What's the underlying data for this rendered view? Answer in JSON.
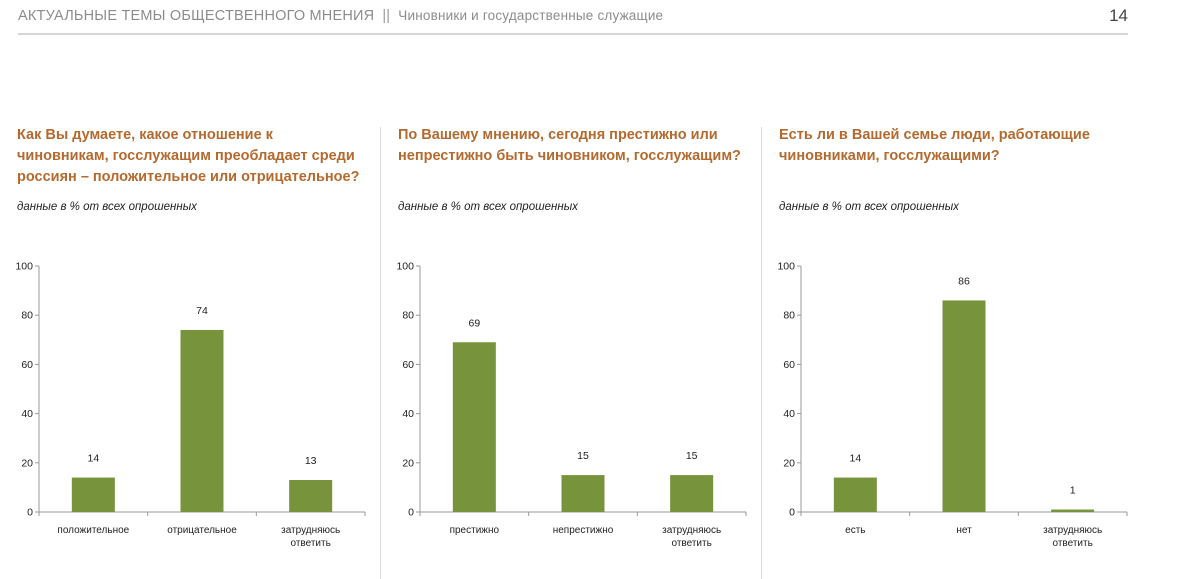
{
  "header": {
    "title": "АКТУАЛЬНЫЕ ТЕМЫ ОБЩЕСТВЕННОГО МНЕНИЯ",
    "separator": "||",
    "section": "Чиновники и государственные служащие",
    "page_number": "14"
  },
  "chart_data": [
    {
      "type": "bar",
      "title": "Как Вы думаете, какое отношение к чиновникам, госслужащим преобладает среди россиян – положительное или отрицательное?",
      "subtitle": "данные в % от всех опрошенных",
      "categories": [
        [
          "положительное"
        ],
        [
          "отрицательное"
        ],
        [
          "затрудняюсь",
          "ответить"
        ]
      ],
      "values": [
        14,
        74,
        13
      ],
      "ylim": [
        0,
        100
      ],
      "yticks": [
        0,
        20,
        40,
        60,
        80,
        100
      ],
      "color": "#77933c",
      "grid": false
    },
    {
      "type": "bar",
      "title": "По Вашему мнению, сегодня престижно или непрестижно быть чиновником, госслужащим?",
      "subtitle": "данные в % от всех опрошенных",
      "categories": [
        [
          "престижно"
        ],
        [
          "непрестижно"
        ],
        [
          "затрудняюсь",
          "ответить"
        ]
      ],
      "values": [
        69,
        15,
        15
      ],
      "ylim": [
        0,
        100
      ],
      "yticks": [
        0,
        20,
        40,
        60,
        80,
        100
      ],
      "color": "#77933c",
      "grid": false
    },
    {
      "type": "bar",
      "title": "Есть ли в Вашей семье люди, работающие чиновниками, госслужащими?",
      "subtitle": "данные в % от всех опрошенных",
      "categories": [
        [
          "есть"
        ],
        [
          "нет"
        ],
        [
          "затрудняюсь",
          "ответить"
        ]
      ],
      "values": [
        14,
        86,
        1
      ],
      "ylim": [
        0,
        100
      ],
      "yticks": [
        0,
        20,
        40,
        60,
        80,
        100
      ],
      "color": "#77933c",
      "grid": false
    }
  ]
}
